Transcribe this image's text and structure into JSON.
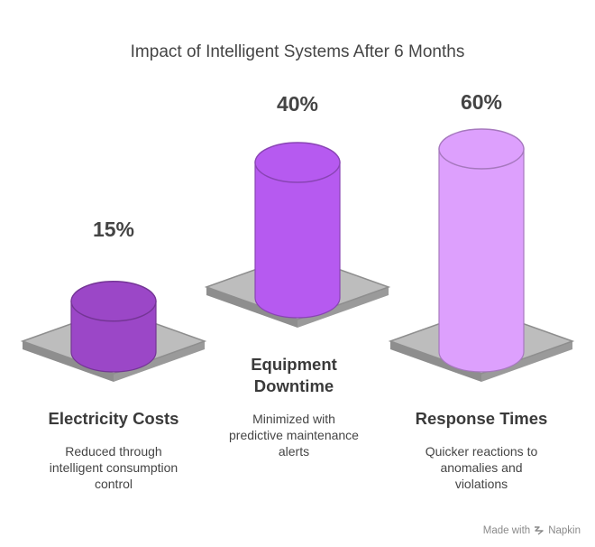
{
  "title": "Impact of Intelligent Systems After 6 Months",
  "footer": {
    "prefix": "Made with",
    "brand": "Napkin",
    "icon": "napkin-logo-icon"
  },
  "colors": {
    "electricity": "#9b47c7",
    "downtime": "#b65af0",
    "response": "#dda0fd",
    "platform": "#a6a6a6",
    "platform_top": "#bdbdbd"
  },
  "chart_data": {
    "type": "bar",
    "title": "Impact of Intelligent Systems After 6 Months",
    "categories": [
      "Electricity Costs",
      "Equipment Downtime",
      "Response Times"
    ],
    "values": [
      15,
      40,
      60
    ],
    "value_labels": [
      "15%",
      "40%",
      "60%"
    ],
    "descriptions": [
      "Reduced through intelligent consumption control",
      "Minimized with predictive maintenance alerts",
      "Quicker reactions to anomalies and violations"
    ],
    "grid": false
  },
  "items": [
    {
      "label": "Electricity Costs",
      "value_label": "15%",
      "desc_lines": [
        "Reduced through",
        "intelligent consumption",
        "control"
      ]
    },
    {
      "label_lines": [
        "Equipment",
        "Downtime"
      ],
      "value_label": "40%",
      "desc_lines": [
        "Minimized with",
        "predictive maintenance",
        "alerts"
      ]
    },
    {
      "label": "Response Times",
      "value_label": "60%",
      "desc_lines": [
        "Quicker reactions to",
        "anomalies and",
        "violations"
      ]
    }
  ]
}
